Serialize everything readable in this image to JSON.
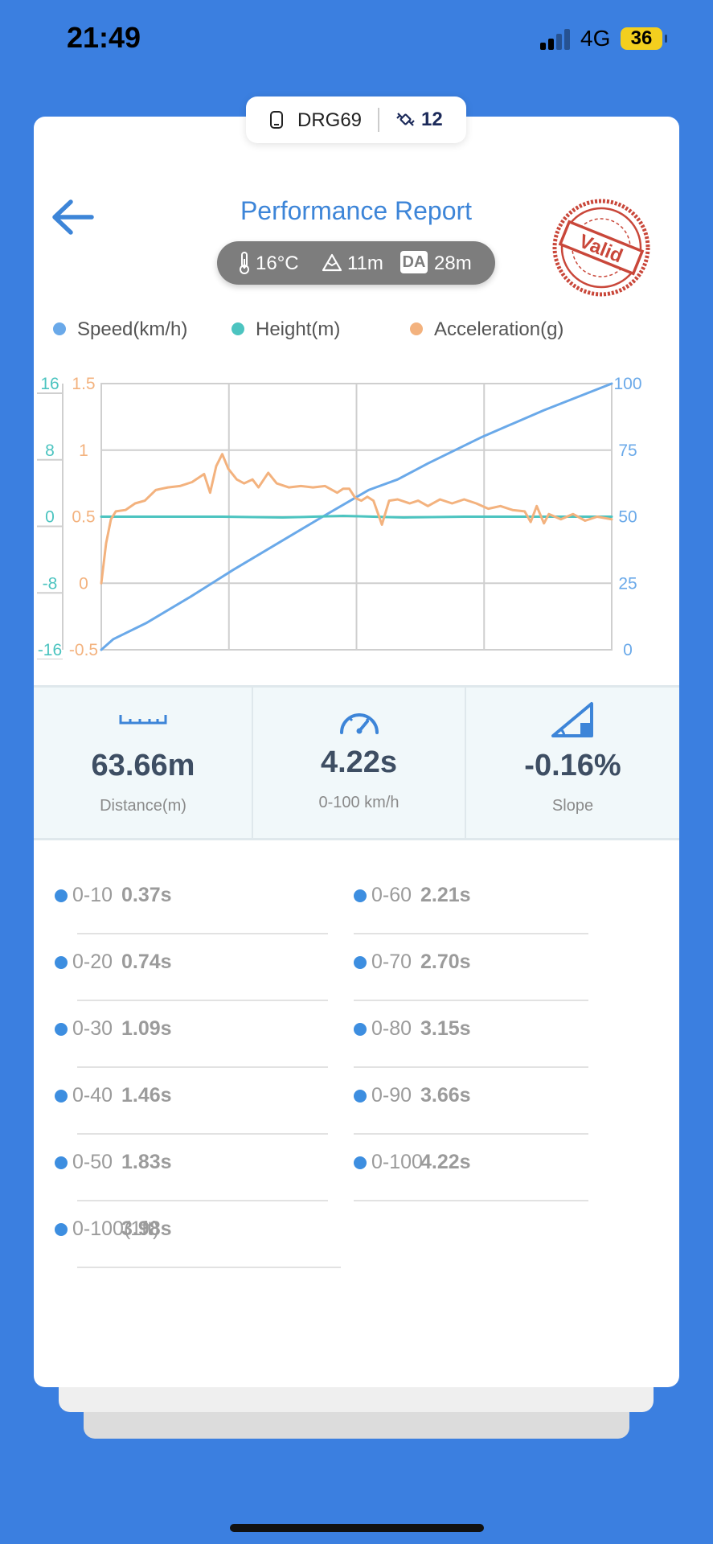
{
  "status_bar": {
    "time": "21:49",
    "network": "4G",
    "battery": "36"
  },
  "device": {
    "name": "DRG69",
    "satellites": "12"
  },
  "header": {
    "title": "Performance Report",
    "stamp": "Valid"
  },
  "conditions": {
    "temperature": "16°C",
    "altitude": "11m",
    "da_label": "DA",
    "density_altitude": "28m"
  },
  "legend": [
    {
      "label": "Speed(km/h)",
      "color": "#6aa9e9"
    },
    {
      "label": "Height(m)",
      "color": "#4cc4c0"
    },
    {
      "label": "Acceleration(g)",
      "color": "#f3b27e"
    }
  ],
  "chart_data": {
    "type": "line",
    "x_range": [
      0,
      4.22
    ],
    "axes": {
      "speed": {
        "ticks": [
          "100",
          "75",
          "50",
          "25",
          "0"
        ],
        "range": [
          0,
          100
        ],
        "color": "#6aa9e9"
      },
      "height": {
        "ticks": [
          "16",
          "8",
          "0",
          "-8",
          "-16"
        ],
        "range": [
          -16,
          16
        ],
        "color": "#4cc4c0"
      },
      "acceleration": {
        "ticks": [
          "1.5",
          "1",
          "0.5",
          "0",
          "-0.5"
        ],
        "range": [
          -0.5,
          1.5
        ],
        "color": "#f3b27e"
      }
    },
    "series": [
      {
        "name": "Speed(km/h)",
        "axis": "speed",
        "color": "#6aa9e9",
        "x": [
          0,
          0.1,
          0.37,
          0.74,
          1.09,
          1.46,
          1.83,
          2.21,
          2.45,
          2.7,
          3.15,
          3.66,
          4.22
        ],
        "y": [
          0,
          4,
          10,
          20,
          30,
          40,
          50,
          60,
          64,
          70,
          80,
          90,
          100
        ]
      },
      {
        "name": "Height(m)",
        "axis": "height",
        "color": "#4cc4c0",
        "x": [
          0,
          1.0,
          1.5,
          2.0,
          2.5,
          3.0,
          4.22
        ],
        "y": [
          0,
          0,
          -0.1,
          0.1,
          -0.1,
          0,
          0
        ]
      },
      {
        "name": "Acceleration(g)",
        "axis": "acceleration",
        "color": "#f3b27e",
        "x": [
          0,
          0.04,
          0.08,
          0.12,
          0.2,
          0.28,
          0.36,
          0.45,
          0.5,
          0.55,
          0.65,
          0.75,
          0.85,
          0.9,
          0.95,
          1.0,
          1.05,
          1.12,
          1.18,
          1.25,
          1.3,
          1.38,
          1.45,
          1.55,
          1.65,
          1.75,
          1.85,
          1.95,
          2.0,
          2.05,
          2.1,
          2.15,
          2.2,
          2.25,
          2.32,
          2.38,
          2.45,
          2.55,
          2.62,
          2.7,
          2.8,
          2.9,
          3.0,
          3.1,
          3.2,
          3.3,
          3.4,
          3.5,
          3.55,
          3.6,
          3.66,
          3.7,
          3.8,
          3.9,
          4.0,
          4.1,
          4.22
        ],
        "y": [
          0,
          0.3,
          0.48,
          0.54,
          0.55,
          0.6,
          0.62,
          0.7,
          0.71,
          0.72,
          0.73,
          0.76,
          0.82,
          0.68,
          0.88,
          0.97,
          0.86,
          0.78,
          0.75,
          0.78,
          0.72,
          0.83,
          0.75,
          0.72,
          0.73,
          0.72,
          0.73,
          0.68,
          0.71,
          0.71,
          0.64,
          0.62,
          0.65,
          0.62,
          0.44,
          0.62,
          0.63,
          0.6,
          0.62,
          0.58,
          0.63,
          0.6,
          0.63,
          0.6,
          0.56,
          0.58,
          0.55,
          0.54,
          0.46,
          0.58,
          0.45,
          0.52,
          0.48,
          0.52,
          0.47,
          0.5,
          0.48
        ]
      }
    ]
  },
  "stats": [
    {
      "value": "63.66m",
      "label": "Distance(m)",
      "icon": "ruler-icon"
    },
    {
      "value": "4.22s",
      "label": "0-100 km/h",
      "icon": "speedometer-icon"
    },
    {
      "value": "-0.16%",
      "label": "Slope",
      "icon": "slope-icon"
    }
  ],
  "splits": [
    {
      "name": "0-10",
      "time": "0.37s"
    },
    {
      "name": "0-60",
      "time": "2.21s"
    },
    {
      "name": "0-20",
      "time": "0.74s"
    },
    {
      "name": "0-70",
      "time": "2.70s"
    },
    {
      "name": "0-30",
      "time": "1.09s"
    },
    {
      "name": "0-80",
      "time": "3.15s"
    },
    {
      "name": "0-40",
      "time": "1.46s"
    },
    {
      "name": "0-90",
      "time": "3.66s"
    },
    {
      "name": "0-50",
      "time": "1.83s"
    },
    {
      "name": "0-100",
      "time": "4.22s"
    },
    {
      "name": "0-100(1ft)",
      "time": "3.98s"
    }
  ]
}
